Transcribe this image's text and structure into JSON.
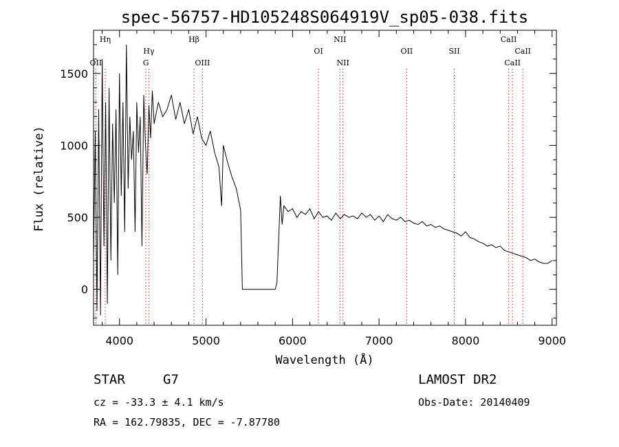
{
  "chart_data": {
    "type": "line",
    "title": "spec-56757-HD105248S064919V_sp05-038.fits",
    "xlabel": "Wavelength (Å)",
    "ylabel": "Flux (relative)",
    "xlim": [
      3700,
      9050
    ],
    "ylim": [
      -250,
      1800
    ],
    "xticks": [
      4000,
      5000,
      6000,
      7000,
      8000,
      9000
    ],
    "yticks": [
      0,
      500,
      1000,
      1500
    ],
    "grid": false,
    "series": [
      {
        "x": [
          3700,
          3720,
          3740,
          3760,
          3780,
          3800,
          3820,
          3840,
          3860,
          3880,
          3900,
          3920,
          3940,
          3960,
          3980,
          4000,
          4020,
          4040,
          4060,
          4080,
          4100,
          4120,
          4140,
          4160,
          4180,
          4200,
          4220,
          4240,
          4260,
          4280,
          4300,
          4320,
          4340,
          4360,
          4380,
          4400,
          4450,
          4500,
          4550,
          4600,
          4650,
          4700,
          4750,
          4800,
          4850,
          4900,
          4950,
          5000,
          5050,
          5100,
          5150,
          5180,
          5200,
          5250,
          5300,
          5350,
          5400,
          5420,
          5440,
          5800,
          5820,
          5840,
          5860,
          5880,
          5900,
          5950,
          6000,
          6050,
          6100,
          6150,
          6200,
          6250,
          6300,
          6350,
          6400,
          6450,
          6500,
          6550,
          6600,
          6650,
          6700,
          6750,
          6800,
          6850,
          6900,
          6950,
          7000,
          7050,
          7100,
          7150,
          7200,
          7250,
          7300,
          7350,
          7400,
          7450,
          7500,
          7550,
          7600,
          7650,
          7700,
          7750,
          7800,
          7850,
          7900,
          7950,
          8000,
          8050,
          8100,
          8150,
          8200,
          8250,
          8300,
          8350,
          8400,
          8450,
          8500,
          8550,
          8600,
          8650,
          8700,
          8750,
          8800,
          8850,
          8900,
          8950,
          9000
        ],
        "y": [
          200,
          1100,
          -150,
          1250,
          -180,
          1600,
          300,
          1300,
          -100,
          1400,
          200,
          1150,
          600,
          1250,
          100,
          1500,
          650,
          1300,
          400,
          1700,
          700,
          1200,
          900,
          1100,
          400,
          1300,
          950,
          1200,
          300,
          1350,
          1000,
          800,
          1280,
          1050,
          1380,
          1150,
          1300,
          1200,
          1250,
          1350,
          1180,
          1300,
          1150,
          1250,
          1080,
          1200,
          1050,
          1000,
          1100,
          950,
          850,
          580,
          1000,
          880,
          780,
          700,
          550,
          0,
          0,
          0,
          50,
          350,
          650,
          450,
          580,
          540,
          560,
          500,
          540,
          520,
          560,
          490,
          540,
          500,
          510,
          480,
          530,
          490,
          520,
          500,
          510,
          490,
          530,
          500,
          520,
          480,
          510,
          470,
          520,
          490,
          480,
          500,
          470,
          480,
          460,
          450,
          470,
          440,
          450,
          430,
          440,
          420,
          410,
          400,
          390,
          370,
          400,
          360,
          350,
          330,
          320,
          300,
          310,
          290,
          300,
          270,
          260,
          250,
          240,
          230,
          220,
          200,
          210,
          190,
          180,
          180,
          200
        ]
      }
    ],
    "lines": [
      {
        "label": "OII",
        "x": 3727,
        "row": 3,
        "anchor": "middle"
      },
      {
        "label": "Hη",
        "x": 3835,
        "row": 1,
        "anchor": "middle"
      },
      {
        "label": "Hγ",
        "x": 4340,
        "row": 2,
        "anchor": "middle"
      },
      {
        "label": "G",
        "x": 4305,
        "row": 3,
        "anchor": "middle"
      },
      {
        "label": "Hβ",
        "x": 4861,
        "row": 1,
        "anchor": "middle"
      },
      {
        "label": "OIII",
        "x": 4959,
        "row": 3,
        "anchor": "middle"
      },
      {
        "label": "OI",
        "x": 6300,
        "row": 2,
        "anchor": "middle"
      },
      {
        "label": "NII",
        "x": 6548,
        "row": 1,
        "anchor": "middle"
      },
      {
        "label": "NII",
        "x": 6583,
        "row": 3,
        "anchor": "middle"
      },
      {
        "label": "OII",
        "x": 7320,
        "row": 2,
        "anchor": "middle"
      },
      {
        "label": "SII",
        "x": 7870,
        "row": 2,
        "anchor": "middle"
      },
      {
        "label": "CaII",
        "x": 8498,
        "row": 1,
        "anchor": "middle"
      },
      {
        "label": "CaII",
        "x": 8542,
        "row": 3,
        "anchor": "middle"
      },
      {
        "label": "CaII",
        "x": 8662,
        "row": 2,
        "anchor": "middle"
      }
    ]
  },
  "info": {
    "object_type": "STAR",
    "subclass": "G7",
    "survey": "LAMOST DR2",
    "cz": "cz = -33.3 ± 4.1 km/s",
    "obs_date": "Obs-Date: 20140409",
    "radec": "RA = 162.79835, DEC =  -7.87780"
  }
}
